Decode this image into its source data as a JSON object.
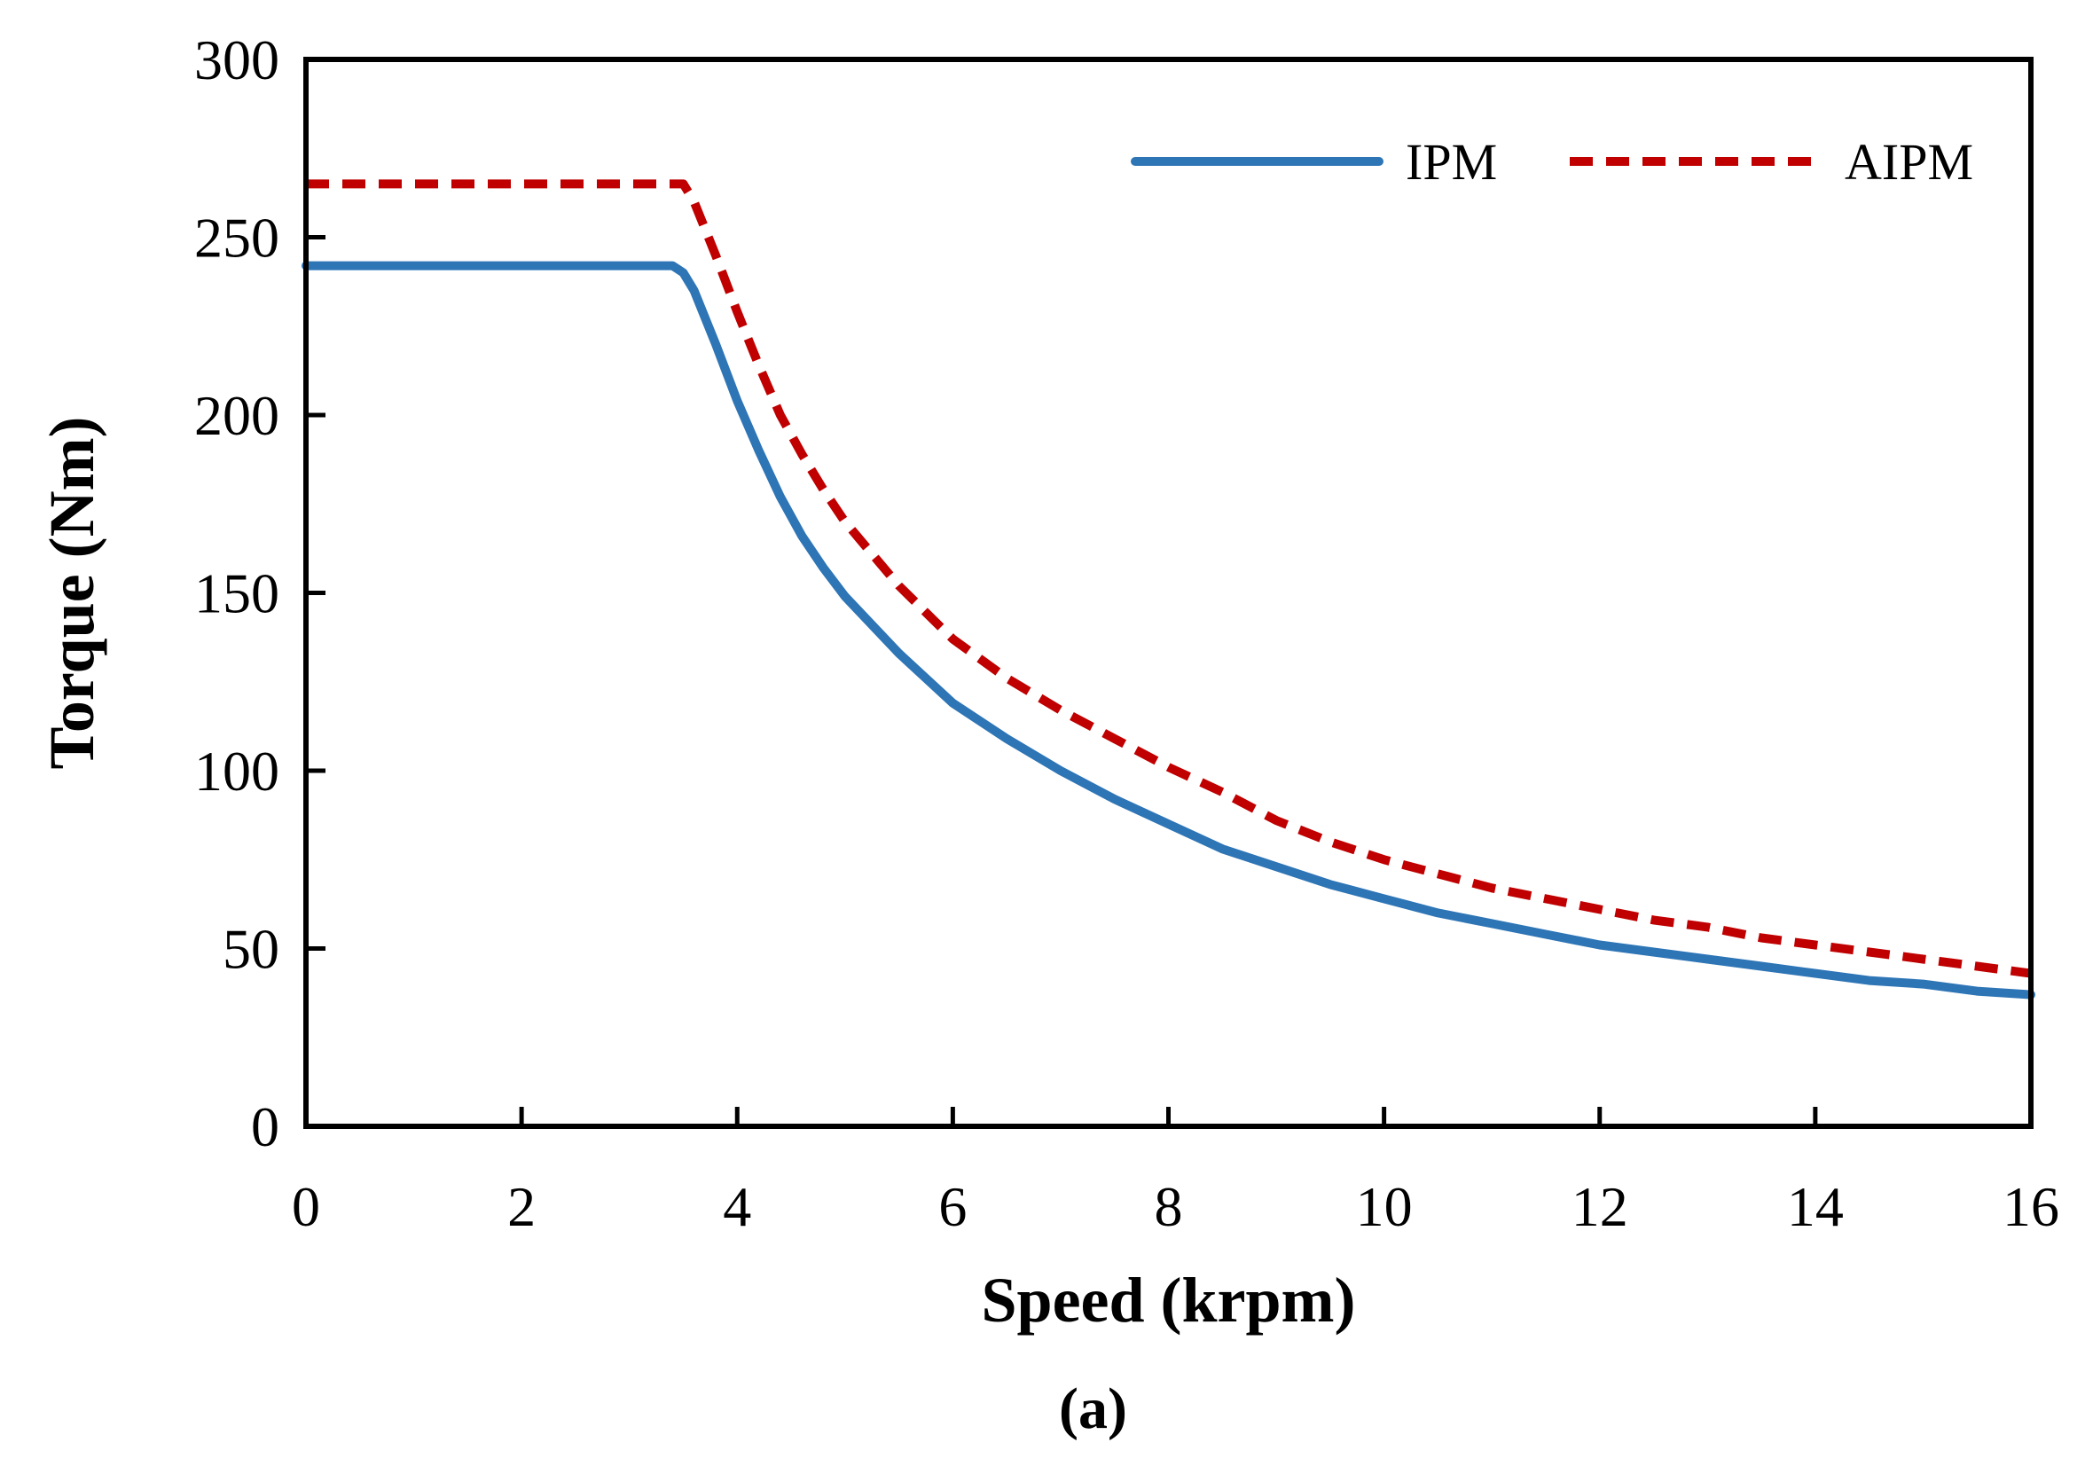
{
  "caption": "(a)",
  "chart_data": {
    "type": "line",
    "xlabel": "Speed (krpm)",
    "ylabel": "Torque (Nm)",
    "xlim": [
      0,
      16
    ],
    "ylim": [
      0,
      300
    ],
    "x_ticks": [
      "0",
      "2",
      "4",
      "6",
      "8",
      "10",
      "12",
      "14",
      "16"
    ],
    "y_ticks": [
      "0",
      "50",
      "100",
      "150",
      "200",
      "250",
      "300"
    ],
    "grid": false,
    "legend_position": "top-right",
    "series": [
      {
        "name": "IPM",
        "color": "#2E75B6",
        "style": "solid",
        "x": [
          0,
          1,
          2,
          3,
          3.4,
          3.5,
          3.6,
          3.8,
          4.0,
          4.2,
          4.4,
          4.6,
          4.8,
          5.0,
          5.5,
          6.0,
          6.5,
          7.0,
          7.5,
          8.0,
          8.5,
          9.0,
          9.5,
          10.0,
          10.5,
          11.0,
          11.5,
          12.0,
          12.5,
          13.0,
          13.5,
          14.0,
          14.5,
          15.0,
          15.5,
          16.0
        ],
        "y": [
          242,
          242,
          242,
          242,
          242,
          240,
          235,
          220,
          204,
          190,
          177,
          166,
          157,
          149,
          133,
          119,
          109,
          100,
          92,
          85,
          78,
          73,
          68,
          64,
          60,
          57,
          54,
          51,
          49,
          47,
          45,
          43,
          41,
          40,
          38,
          37
        ]
      },
      {
        "name": "AIPM",
        "color": "#C00000",
        "style": "dashed",
        "x": [
          0,
          1,
          2,
          3,
          3.5,
          3.6,
          3.8,
          4.0,
          4.2,
          4.4,
          4.6,
          4.8,
          5.0,
          5.5,
          6.0,
          6.5,
          7.0,
          7.5,
          8.0,
          8.5,
          9.0,
          9.5,
          10.0,
          10.5,
          11.0,
          11.5,
          12.0,
          12.5,
          13.0,
          13.5,
          14.0,
          14.5,
          15.0,
          15.5,
          16.0
        ],
        "y": [
          265,
          265,
          265,
          265,
          265,
          260,
          245,
          229,
          214,
          200,
          189,
          179,
          170,
          152,
          137,
          126,
          117,
          109,
          101,
          94,
          86,
          80,
          75,
          71,
          67,
          64,
          61,
          58,
          56,
          53,
          51,
          49,
          47,
          45,
          43
        ]
      }
    ]
  }
}
